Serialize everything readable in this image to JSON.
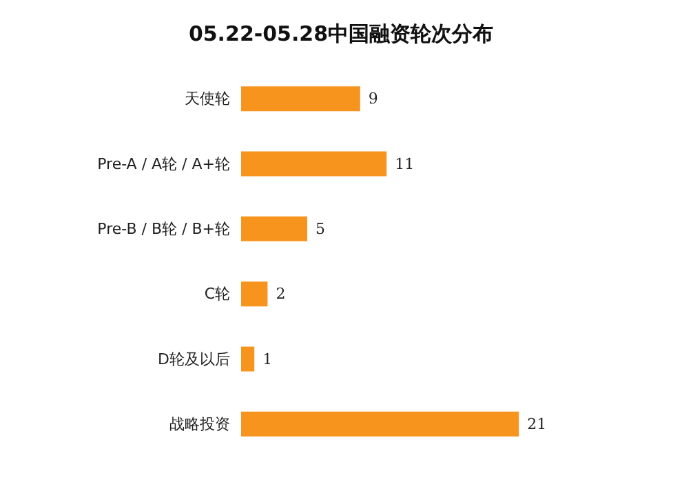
{
  "chart_data": {
    "type": "bar",
    "orientation": "horizontal",
    "title": "05.22-05.28中国融资轮次分布",
    "categories": [
      "天使轮",
      "Pre-A / A轮 / A+轮",
      "Pre-B / B轮 / B+轮",
      "C轮",
      "D轮及以后",
      "战略投资"
    ],
    "values": [
      9,
      11,
      5,
      2,
      1,
      21
    ],
    "color": "#f7941d",
    "data_labels": true
  }
}
